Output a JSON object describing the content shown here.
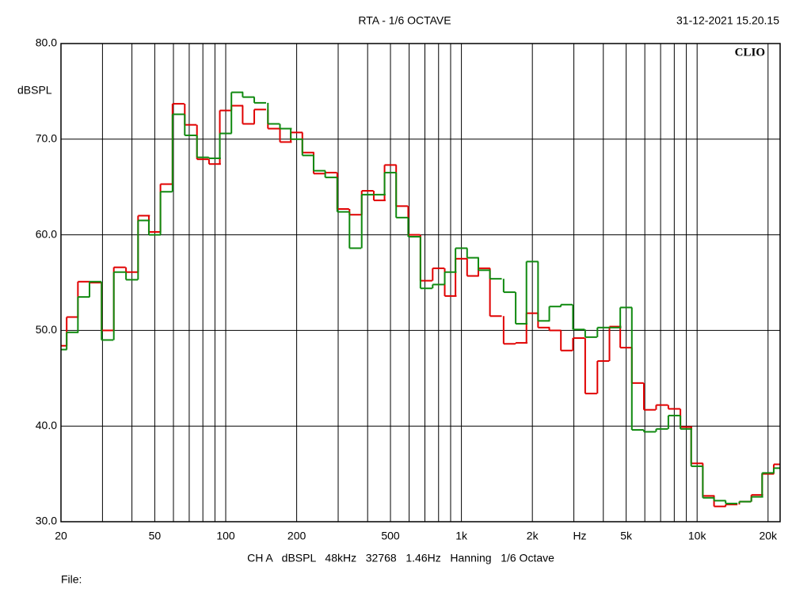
{
  "chart_data": {
    "type": "step",
    "title": "RTA - 1/6 OCTAVE",
    "timestamp": "31-12-2021 15.20.15",
    "brand": "CLIO",
    "y_label": "dBSPL",
    "x_unit": "Hz",
    "footer": "CH A   dBSPL   48kHz   32768   1.46Hz   Hanning   1/6 Octave",
    "file_label": "File:",
    "log_x": true,
    "grid": true,
    "xlim": [
      20,
      22500
    ],
    "xticks": [
      20,
      50,
      100,
      200,
      500,
      {
        "value": 1000,
        "label": "1k"
      },
      {
        "value": 2000,
        "label": "2k"
      },
      {
        "value": 5000,
        "label": "5k"
      },
      {
        "value": 10000,
        "label": "10k"
      },
      {
        "value": 20000,
        "label": "20k"
      }
    ],
    "minor_xticks": [
      30,
      40,
      60,
      70,
      80,
      90,
      300,
      400,
      600,
      700,
      800,
      900,
      3000,
      4000,
      6000,
      7000,
      8000,
      9000
    ],
    "ylim": [
      30,
      80
    ],
    "yticks": [
      {
        "value": 30,
        "label": "30.0"
      },
      {
        "value": 40,
        "label": "40.0"
      },
      {
        "value": 50,
        "label": "50.0"
      },
      {
        "value": 60,
        "label": "60.0"
      },
      {
        "value": 70,
        "label": "70.0"
      },
      {
        "value": 80,
        "label": "80.0"
      }
    ],
    "x": [
      20,
      22.4,
      25,
      28,
      31.5,
      35.5,
      40,
      45,
      50,
      56,
      63,
      71,
      80,
      90,
      100,
      112,
      125,
      140,
      160,
      180,
      200,
      224,
      250,
      280,
      315,
      355,
      400,
      450,
      500,
      560,
      630,
      710,
      800,
      900,
      1000,
      1120,
      1250,
      1400,
      1600,
      1800,
      2000,
      2240,
      2500,
      2800,
      3150,
      3550,
      4000,
      4500,
      5000,
      5600,
      6300,
      7100,
      8000,
      9000,
      10000,
      11200,
      12500,
      14000,
      16000,
      18000,
      20000,
      22400
    ],
    "series": [
      {
        "color": "#e00000",
        "values": [
          48.4,
          51.4,
          55.1,
          55.0,
          50.0,
          56.6,
          56.1,
          62.0,
          60.3,
          65.3,
          73.7,
          71.5,
          67.9,
          67.4,
          73.0,
          73.5,
          71.6,
          73.1,
          71.1,
          69.7,
          70.7,
          68.6,
          66.4,
          66.5,
          62.7,
          62.1,
          64.6,
          63.6,
          67.3,
          63.0,
          60.0,
          55.2,
          56.5,
          53.6,
          57.5,
          55.7,
          56.5,
          51.5,
          48.6,
          48.7,
          51.8,
          50.3,
          50.0,
          47.9,
          49.2,
          43.4,
          46.8,
          50.4,
          48.2,
          44.5,
          41.7,
          42.2,
          41.8,
          39.9,
          36.1,
          32.7,
          31.6,
          31.8,
          32.1,
          32.8,
          35.0,
          36.0
        ]
      },
      {
        "color": "#108a10",
        "values": [
          48.0,
          49.8,
          53.5,
          55.1,
          49.0,
          56.1,
          55.3,
          61.5,
          60.0,
          64.5,
          72.6,
          70.4,
          68.1,
          68.0,
          70.6,
          74.9,
          74.4,
          73.8,
          71.6,
          71.1,
          70.0,
          68.3,
          66.7,
          66.0,
          62.4,
          58.6,
          64.2,
          64.2,
          66.5,
          61.8,
          59.8,
          54.4,
          54.8,
          56.1,
          58.6,
          57.6,
          56.3,
          55.4,
          54.0,
          50.7,
          57.2,
          51.0,
          52.5,
          52.7,
          50.1,
          49.3,
          50.3,
          50.3,
          52.4,
          39.6,
          39.4,
          39.7,
          41.1,
          39.7,
          35.8,
          32.5,
          32.2,
          31.9,
          32.1,
          32.6,
          35.1,
          35.6
        ]
      }
    ]
  }
}
